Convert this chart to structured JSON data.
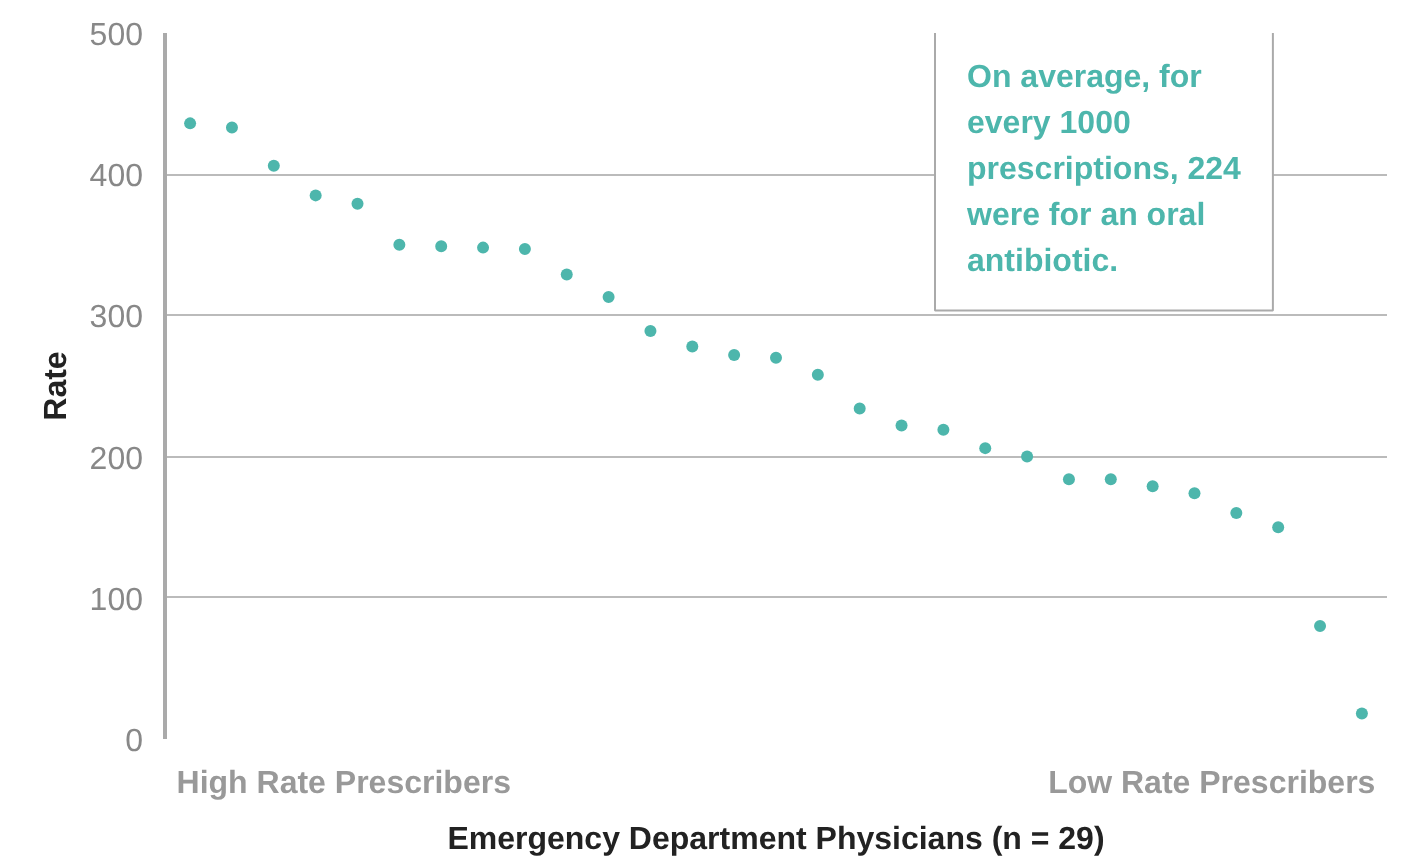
{
  "chart_data": {
    "type": "scatter",
    "xlabel": "Emergency Department Physicians (n = 29)",
    "ylabel": "Rate",
    "categories": [
      null,
      null,
      null,
      null,
      null,
      null,
      null,
      null,
      null,
      null,
      null,
      null,
      null,
      null,
      null,
      null,
      null,
      null,
      null,
      null,
      null,
      null,
      null,
      null,
      null,
      null,
      null,
      null,
      null
    ],
    "values": [
      436,
      433,
      406,
      385,
      379,
      350,
      349,
      348,
      347,
      329,
      313,
      289,
      278,
      272,
      270,
      258,
      234,
      222,
      219,
      206,
      200,
      184,
      184,
      179,
      174,
      160,
      150,
      80,
      18
    ],
    "color": "#4db6ac",
    "marker": "circle",
    "ylim": [
      0,
      500
    ],
    "yticks": [
      0,
      100,
      200,
      300,
      400,
      500
    ],
    "grid": "y",
    "annotations": [
      "High Rate Prescribers",
      "Low Rate Prescribers",
      "On average, for every 1000 prescriptions, 224 were for an oral antibiotic."
    ]
  }
}
